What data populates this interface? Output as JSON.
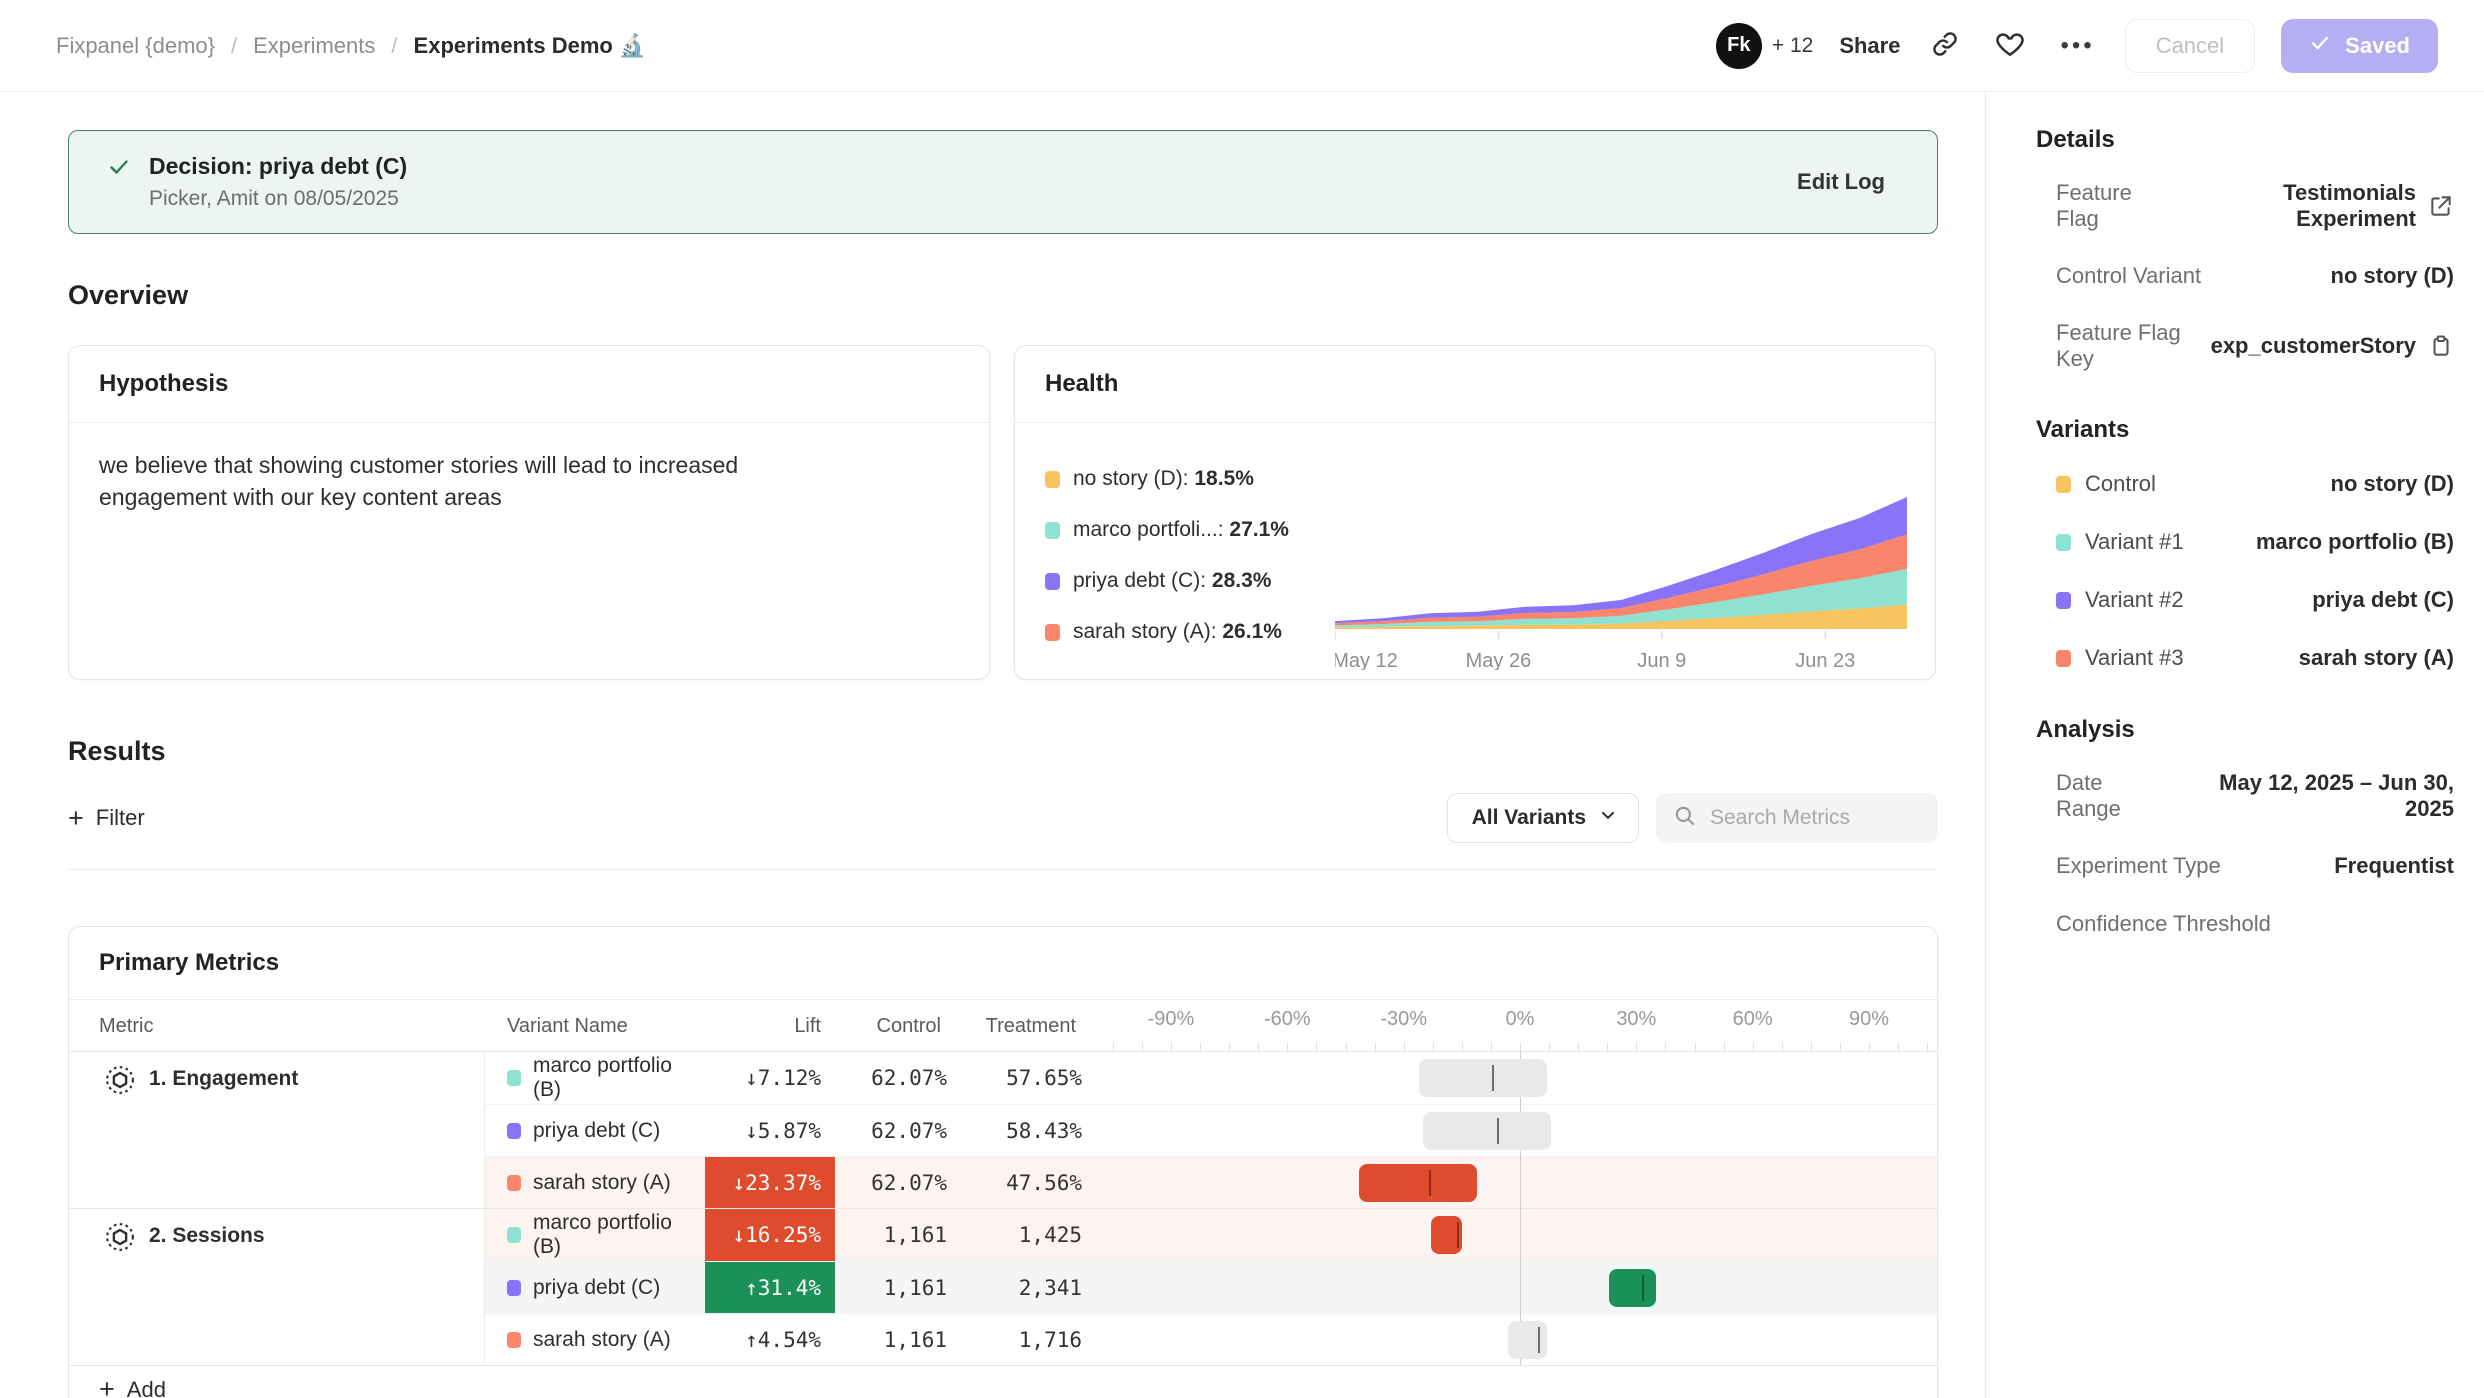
{
  "header": {
    "breadcrumb": [
      {
        "label": "Fixpanel {demo}"
      },
      {
        "label": "Experiments"
      },
      {
        "label": "Experiments Demo 🔬"
      }
    ],
    "avatar_label": "Fk",
    "avatar_extra": "+ 12",
    "share_label": "Share",
    "cancel_label": "Cancel",
    "saved_label": "Saved"
  },
  "banner": {
    "title": "Decision: priya debt (C)",
    "subtitle": "Picker, Amit on 08/05/2025",
    "action": "Edit Log"
  },
  "overview": {
    "heading": "Overview",
    "hypothesis": {
      "title": "Hypothesis",
      "body": "we believe that showing customer stories will lead to increased engagement with our key content areas"
    },
    "health": {
      "title": "Health",
      "legend": [
        {
          "name": "no story (D)",
          "value": "18.5%",
          "color": "#f7c45f"
        },
        {
          "name": "marco portfoli...",
          "value": "27.1%",
          "color": "#90e2d0"
        },
        {
          "name": "priya debt (C)",
          "value": "28.3%",
          "color": "#8b73f7"
        },
        {
          "name": "sarah story (A)",
          "value": "26.1%",
          "color": "#f8856c"
        }
      ]
    }
  },
  "chart_data": [
    {
      "type": "area",
      "title": "Health",
      "stacked": true,
      "grid": false,
      "legend_position": "left",
      "x": [
        "May 12",
        "May 16",
        "May 20",
        "May 24",
        "May 28",
        "Jun 1",
        "Jun 5",
        "Jun 9",
        "Jun 13",
        "Jun 17",
        "Jun 21",
        "Jun 25",
        "Jun 30"
      ],
      "x_axis_labels": [
        {
          "label": "May 12",
          "day": 0
        },
        {
          "label": "May 26",
          "day": 14
        },
        {
          "label": "Jun 9",
          "day": 28
        },
        {
          "label": "Jun 23",
          "day": 42
        }
      ],
      "total_days": 49,
      "ylim": [
        0,
        100
      ],
      "series": [
        {
          "name": "no story (D)",
          "color": "#f7c45f",
          "values": [
            1.1,
            1.5,
            2.2,
            2.4,
            3.1,
            3.3,
            4.1,
            6.1,
            8.3,
            10.7,
            13.3,
            15.5,
            18.5
          ]
        },
        {
          "name": "marco portfolio (B)",
          "color": "#90e2d0",
          "values": [
            1.6,
            2.2,
            3.3,
            3.5,
            4.6,
            4.9,
            6.0,
            8.9,
            12.2,
            15.7,
            19.5,
            22.8,
            27.1
          ]
        },
        {
          "name": "sarah story (A)",
          "color": "#f8856c",
          "values": [
            1.6,
            2.1,
            3.1,
            3.4,
            4.4,
            4.7,
            5.7,
            8.6,
            11.7,
            15.1,
            18.8,
            21.9,
            26.1
          ]
        },
        {
          "name": "priya debt (C)",
          "color": "#8b73f7",
          "values": [
            1.7,
            2.3,
            3.4,
            3.7,
            4.8,
            5.1,
            6.2,
            9.3,
            12.7,
            16.4,
            20.4,
            23.8,
            28.3
          ]
        }
      ]
    },
    {
      "type": "table",
      "title": "Primary Metrics — lift vs control with confidence intervals (%)",
      "axis_range": [
        -105,
        105
      ],
      "rows": [
        {
          "metric": "1. Engagement",
          "variant": "marco portfolio (B)",
          "lift_pct": -7.12,
          "control": 62.07,
          "treatment": 57.65,
          "ci": [
            -26,
            7
          ]
        },
        {
          "metric": "1. Engagement",
          "variant": "priya debt (C)",
          "lift_pct": -5.87,
          "control": 62.07,
          "treatment": 58.43,
          "ci": [
            -25,
            8
          ]
        },
        {
          "metric": "1. Engagement",
          "variant": "sarah story (A)",
          "lift_pct": -23.37,
          "control": 62.07,
          "treatment": 47.56,
          "ci": [
            -41.5,
            -11
          ]
        },
        {
          "metric": "2. Sessions",
          "variant": "marco portfolio (B)",
          "lift_pct": -16.25,
          "control": 1161,
          "treatment": 1425,
          "ci": [
            -23,
            -15
          ]
        },
        {
          "metric": "2. Sessions",
          "variant": "priya debt (C)",
          "lift_pct": 31.4,
          "control": 1161,
          "treatment": 2341,
          "ci": [
            23,
            35
          ]
        },
        {
          "metric": "2. Sessions",
          "variant": "sarah story (A)",
          "lift_pct": 4.54,
          "control": 1161,
          "treatment": 1716,
          "ci": [
            -3,
            7
          ]
        }
      ]
    }
  ],
  "results": {
    "heading": "Results",
    "filter_label": "Filter",
    "variant_filter": "All Variants",
    "search_placeholder": "Search Metrics"
  },
  "primary_metrics": {
    "title": "Primary Metrics",
    "add_label": "Add",
    "columns": {
      "metric": "Metric",
      "variant": "Variant Name",
      "lift": "Lift",
      "control": "Control",
      "treatment": "Treatment"
    },
    "axis": {
      "ticks": [
        {
          "label": "-90%",
          "value": -90
        },
        {
          "label": "-60%",
          "value": -60
        },
        {
          "label": "-30%",
          "value": -30
        },
        {
          "label": "0%",
          "value": 0
        },
        {
          "label": "30%",
          "value": 30
        },
        {
          "label": "60%",
          "value": 60
        },
        {
          "label": "90%",
          "value": 90
        }
      ]
    },
    "groups": [
      {
        "metric": "1. Engagement",
        "rows": [
          {
            "variant": "marco portfolio (B)",
            "color": "#90e2d0",
            "lift": "↓7.12%",
            "lift_style": "plain",
            "control": "62.07%",
            "treatment": "57.65%",
            "ci_low": -26,
            "ci_high": 7,
            "estimate": -7.12,
            "bar": "neutral",
            "row_bg": "none"
          },
          {
            "variant": "priya debt (C)",
            "color": "#8b73f7",
            "lift": "↓5.87%",
            "lift_style": "plain",
            "control": "62.07%",
            "treatment": "58.43%",
            "ci_low": -25,
            "ci_high": 8,
            "estimate": -5.87,
            "bar": "neutral",
            "row_bg": "none"
          },
          {
            "variant": "sarah story (A)",
            "color": "#f8856c",
            "lift": "↓23.37%",
            "lift_style": "negative",
            "control": "62.07%",
            "treatment": "47.56%",
            "ci_low": -41.5,
            "ci_high": -11,
            "estimate": -23.37,
            "bar": "negative",
            "row_bg": "negative"
          }
        ]
      },
      {
        "metric": "2. Sessions",
        "rows": [
          {
            "variant": "marco portfolio (B)",
            "color": "#90e2d0",
            "lift": "↓16.25%",
            "lift_style": "negative",
            "control": "1,161",
            "treatment": "1,425",
            "ci_low": -23,
            "ci_high": -15,
            "estimate": -16.25,
            "bar": "negative",
            "row_bg": "negative"
          },
          {
            "variant": "priya debt (C)",
            "color": "#8b73f7",
            "lift": "↑31.4%",
            "lift_style": "positive",
            "control": "1,161",
            "treatment": "2,341",
            "ci_low": 23,
            "ci_high": 35,
            "estimate": 31.4,
            "bar": "positive",
            "row_bg": "positive"
          },
          {
            "variant": "sarah story (A)",
            "color": "#f8856c",
            "lift": "↑4.54%",
            "lift_style": "plain",
            "control": "1,161",
            "treatment": "1,716",
            "ci_low": -3,
            "ci_high": 7,
            "estimate": 4.54,
            "bar": "neutral",
            "row_bg": "none"
          }
        ]
      }
    ]
  },
  "sidebar": {
    "details": {
      "heading": "Details",
      "rows": [
        {
          "label": "Feature Flag",
          "value": "Testimonials Experiment",
          "icon": "external-link"
        },
        {
          "label": "Control Variant",
          "value": "no story (D)"
        },
        {
          "label": "Feature Flag Key",
          "value": "exp_customerStory",
          "icon": "clipboard"
        }
      ]
    },
    "variants": {
      "heading": "Variants",
      "rows": [
        {
          "label": "Control",
          "value": "no story (D)",
          "color": "#f7c45f"
        },
        {
          "label": "Variant #1",
          "value": "marco portfolio (B)",
          "color": "#90e2d0"
        },
        {
          "label": "Variant #2",
          "value": "priya debt (C)",
          "color": "#8b73f7"
        },
        {
          "label": "Variant #3",
          "value": "sarah story (A)",
          "color": "#f8856c"
        }
      ]
    },
    "analysis": {
      "heading": "Analysis",
      "rows": [
        {
          "label": "Date Range",
          "value": "May 12, 2025 – Jun 30, 2025"
        },
        {
          "label": "Experiment Type",
          "value": "Frequentist"
        },
        {
          "label": "Confidence Threshold",
          "value": ""
        }
      ]
    }
  }
}
